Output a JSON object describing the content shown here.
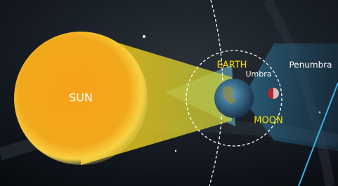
{
  "labels": {
    "sun": "SUN",
    "earth": "EARTH",
    "umbra": "Umbra",
    "penumbra": "Penumbra",
    "moon": "MOON"
  }
}
